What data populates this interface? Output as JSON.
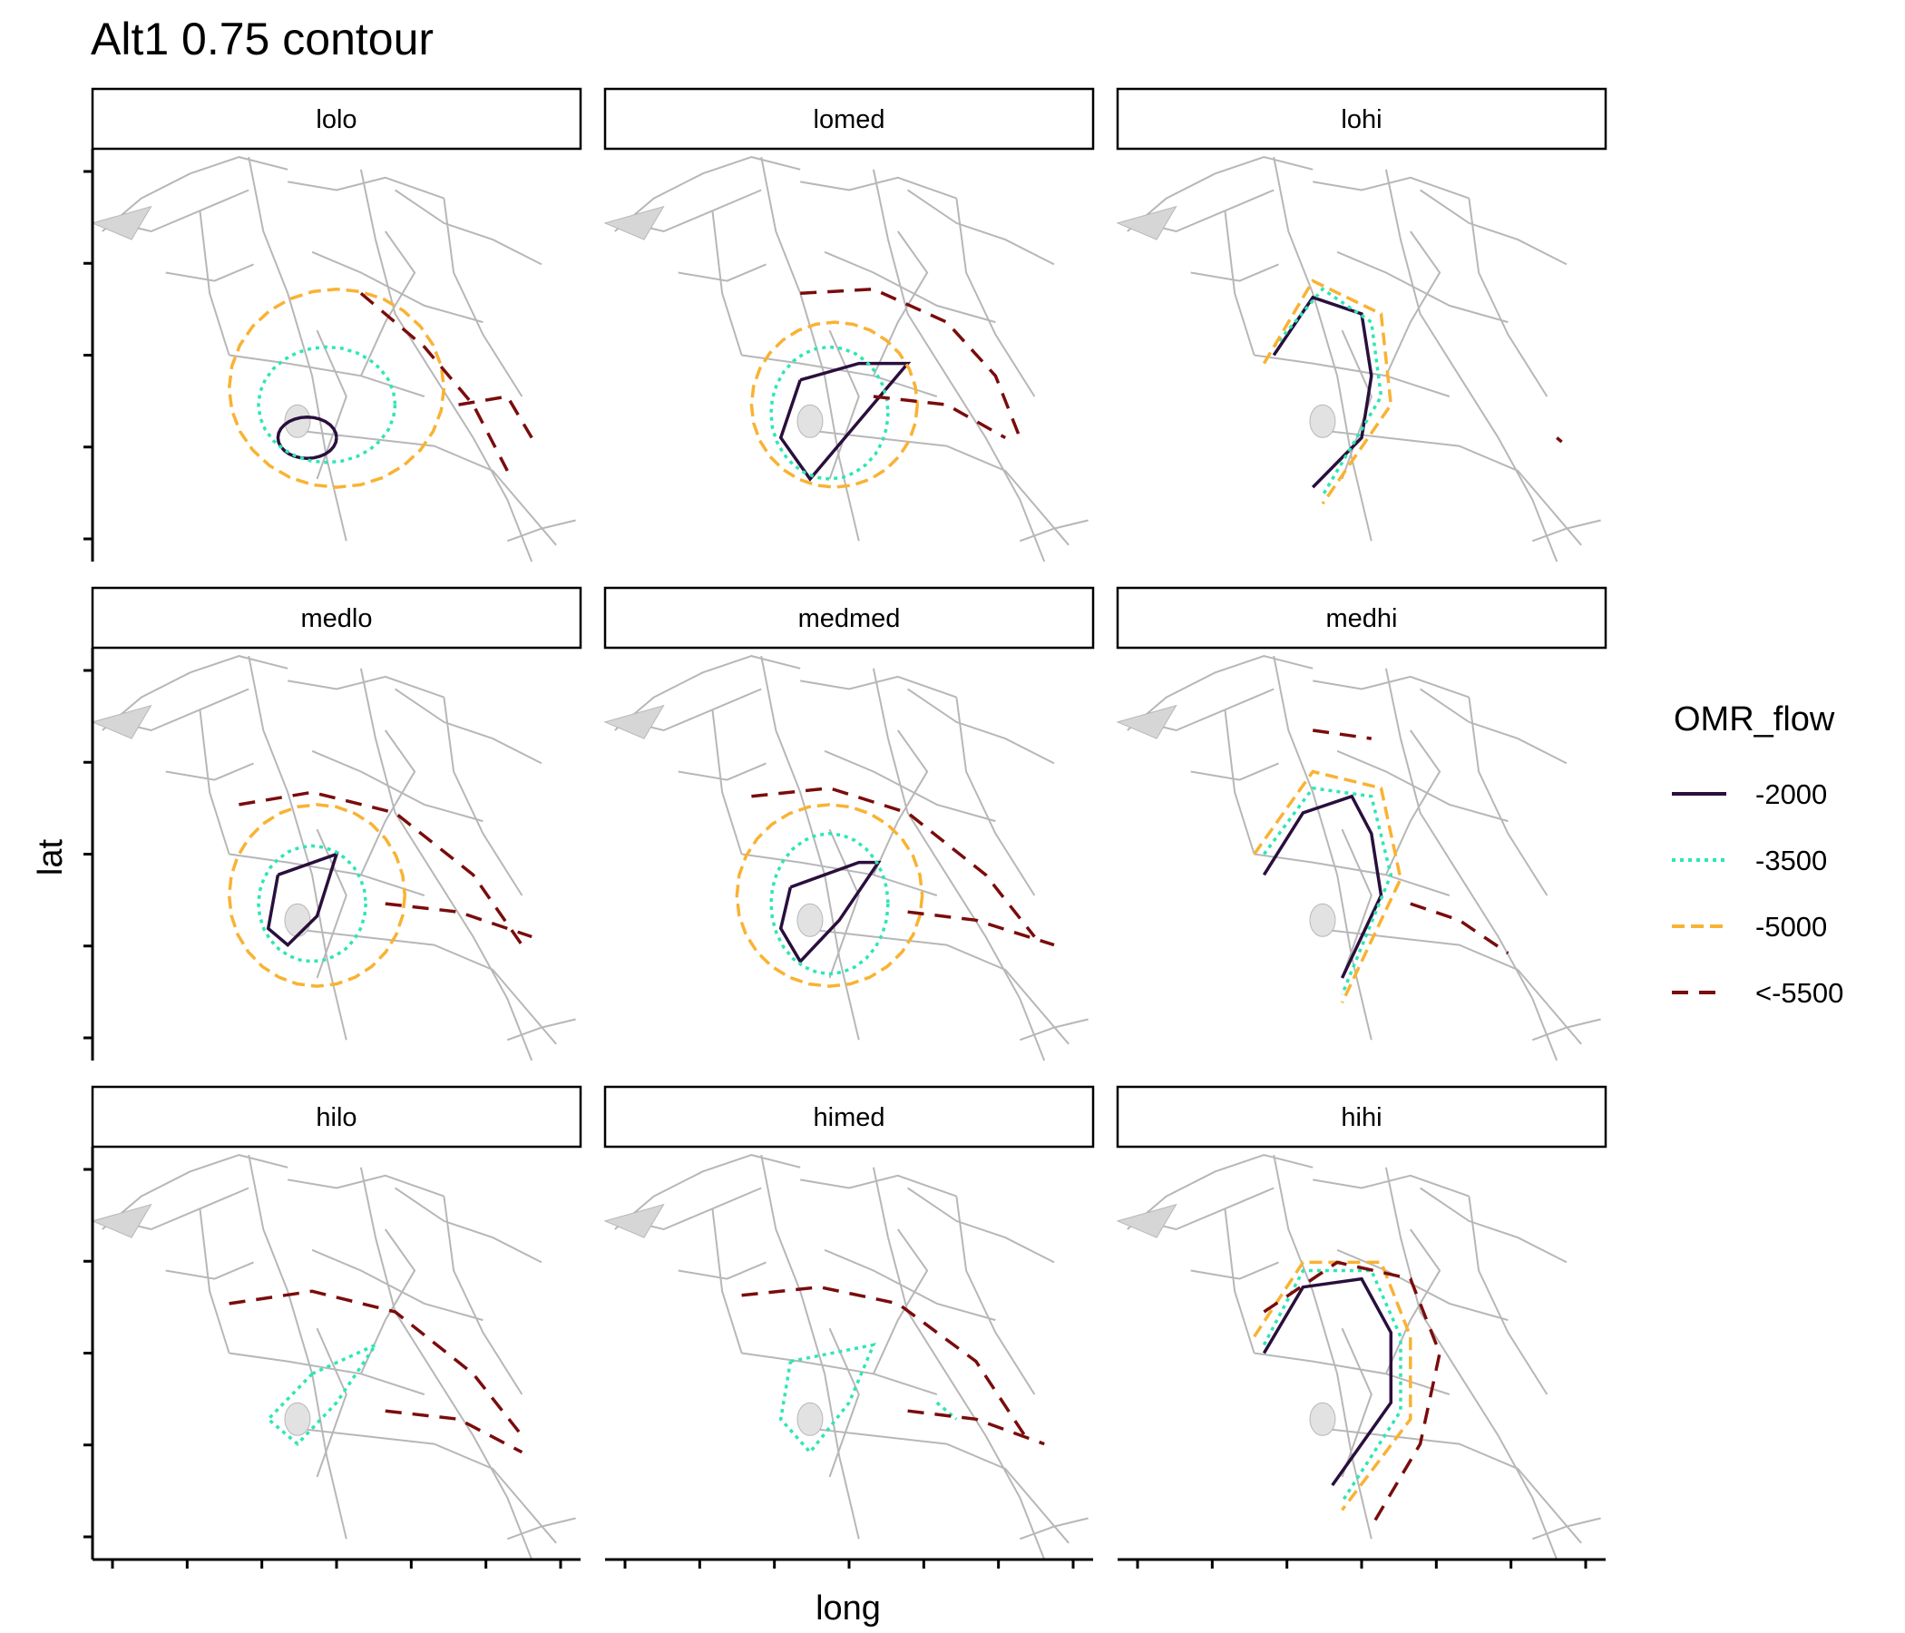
{
  "chart_data": {
    "type": "line",
    "title": "Alt1 0.75 contour",
    "xlabel": "long",
    "ylabel": "lat",
    "grid": false,
    "legend": {
      "title": "OMR_flow",
      "placement": "right",
      "entries": [
        {
          "label": "-2000",
          "color": "#2a0f3d",
          "dash": "solid"
        },
        {
          "label": "-3500",
          "color": "#2ee6b4",
          "dash": "dotted"
        },
        {
          "label": "-5000",
          "color": "#f9b233",
          "dash": "dashed"
        },
        {
          "label": "<-5500",
          "color": "#7a0c0c",
          "dash": "longdash"
        }
      ]
    },
    "panels": [
      {
        "label": "lolo"
      },
      {
        "label": "lomed"
      },
      {
        "label": "lohi"
      },
      {
        "label": "medlo"
      },
      {
        "label": "medmed"
      },
      {
        "label": "medhi"
      },
      {
        "label": "hilo"
      },
      {
        "label": "himed"
      },
      {
        "label": "hihi"
      }
    ]
  }
}
